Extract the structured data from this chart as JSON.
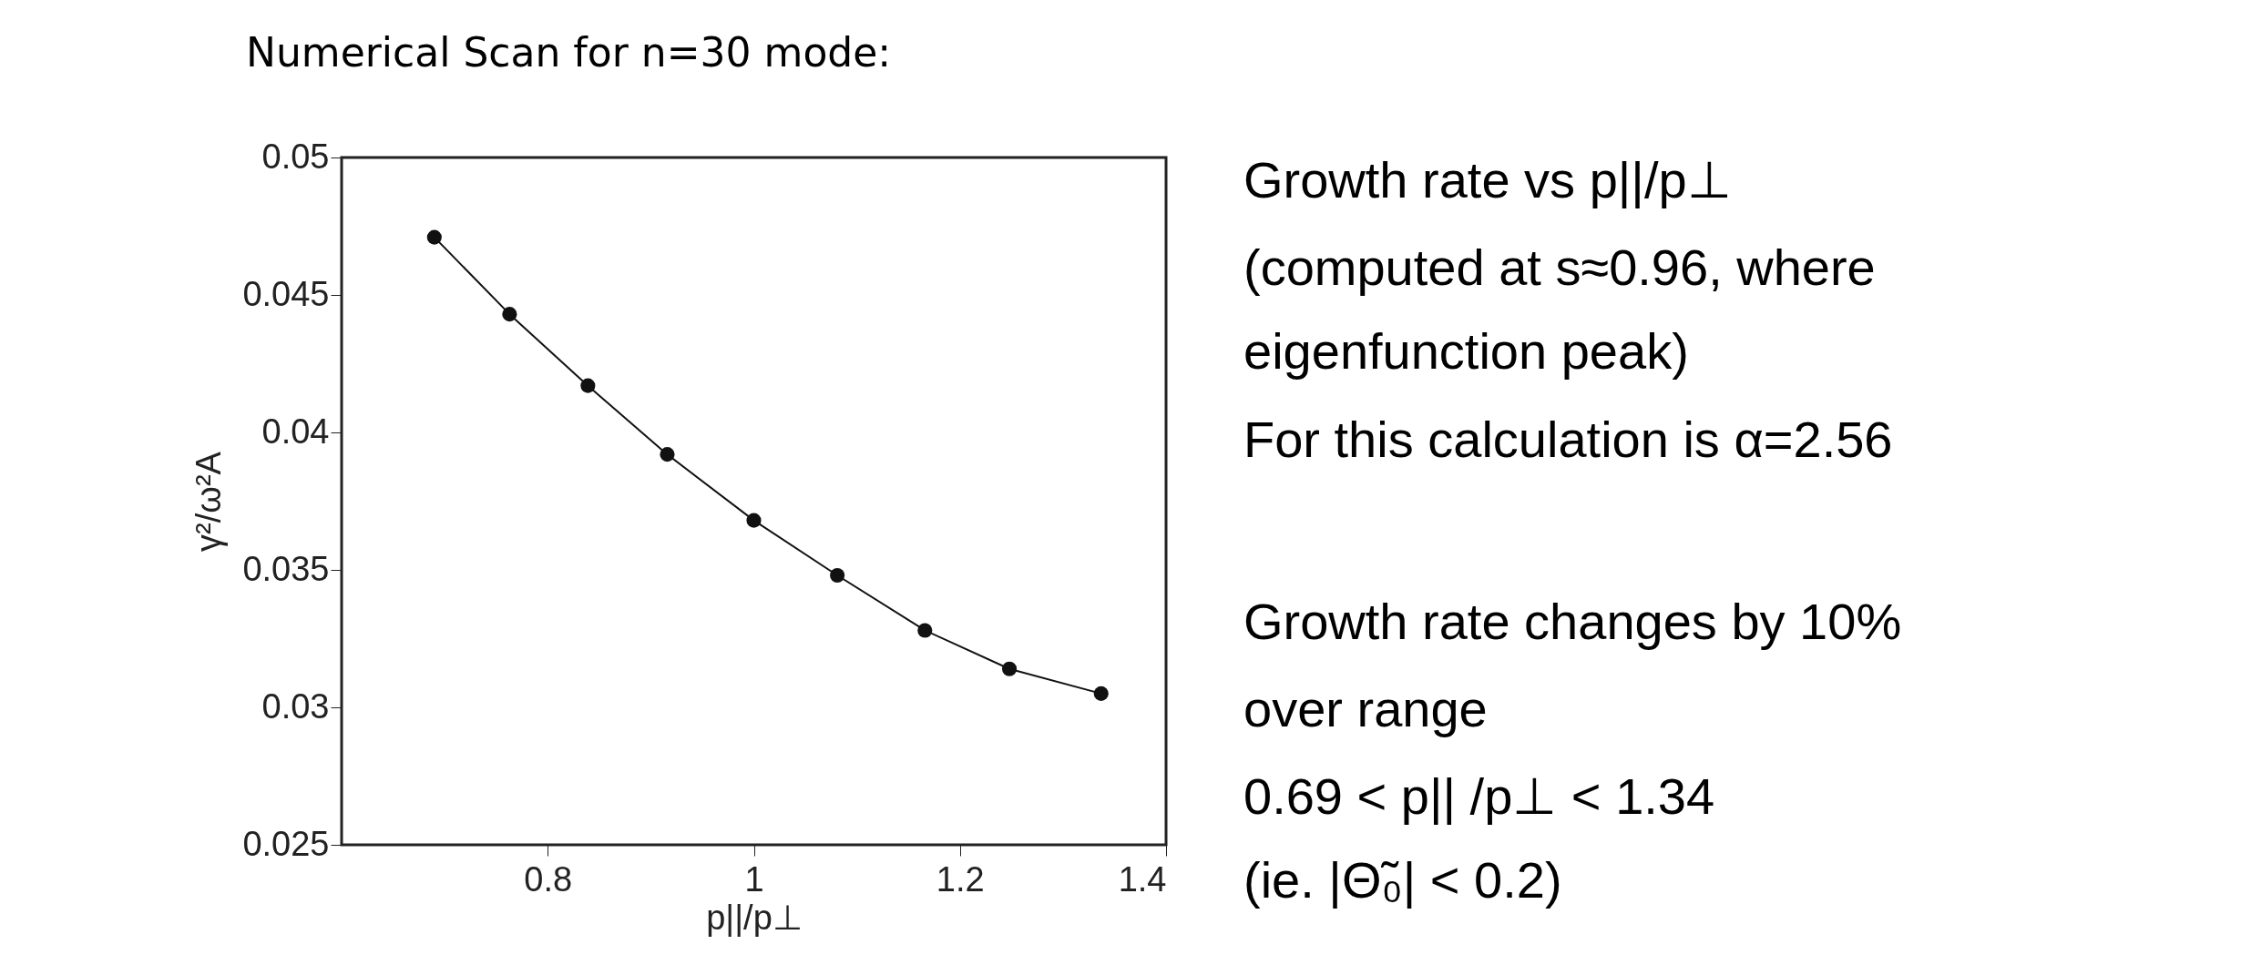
{
  "chart_data": {
    "type": "line",
    "title": "Numerical Scan for n=30 mode:",
    "xlabel": "p||/p⊥",
    "ylabel": "γ²/ω²A",
    "x": [
      0.69,
      0.763,
      0.839,
      0.916,
      1.0,
      1.081,
      1.166,
      1.248,
      1.337
    ],
    "series": [
      {
        "color": "#111111",
        "values": [
          0.0471,
          0.0443,
          0.0417,
          0.0392,
          0.0368,
          0.0348,
          0.0328,
          0.0314,
          0.0305
        ]
      }
    ],
    "xlim": [
      0.6,
      1.4
    ],
    "ylim": [
      0.025,
      0.05
    ],
    "xticks": [
      0.8,
      1,
      1.2,
      1.4
    ],
    "yticks": [
      0.025,
      0.03,
      0.035,
      0.04,
      0.045,
      0.05
    ],
    "marker": "circle",
    "line_style": "solid",
    "grid": false,
    "annotations": [
      "Growth rate vs p||/p⊥",
      "(computed at s≈0.96, where",
      "eigenfunction peak)",
      "For this calculation is α=2.56",
      "Growth rate changes by 10%",
      "over range",
      "0.69 < p|| /p⊥ < 1.34",
      "(ie. |Θ̃₀| < 0.2)"
    ]
  }
}
